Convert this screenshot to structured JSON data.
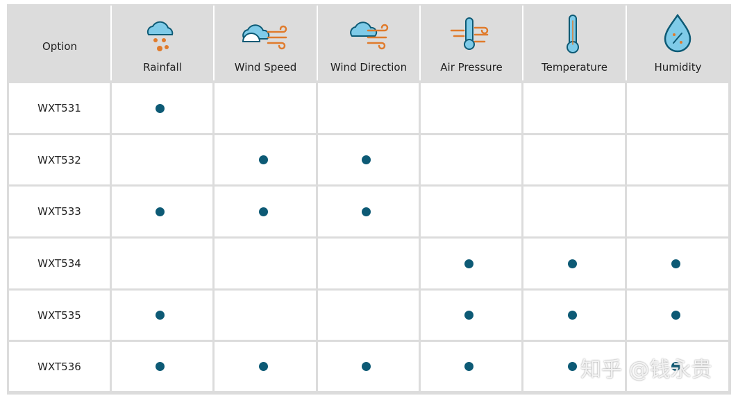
{
  "table": {
    "header": {
      "first": "Option",
      "columns": [
        "Rainfall",
        "Wind Speed",
        "Wind Direction",
        "Air Pressure",
        "Temperature",
        "Humidity"
      ]
    },
    "rows": [
      {
        "name": "WXT531",
        "cells": [
          true,
          false,
          false,
          false,
          false,
          false
        ]
      },
      {
        "name": "WXT532",
        "cells": [
          false,
          true,
          true,
          false,
          false,
          false
        ]
      },
      {
        "name": "WXT533",
        "cells": [
          true,
          true,
          true,
          false,
          false,
          false
        ]
      },
      {
        "name": "WXT534",
        "cells": [
          false,
          false,
          false,
          true,
          true,
          true
        ]
      },
      {
        "name": "WXT535",
        "cells": [
          true,
          false,
          false,
          true,
          true,
          true
        ]
      },
      {
        "name": "WXT536",
        "cells": [
          true,
          true,
          true,
          true,
          true,
          true
        ]
      }
    ]
  },
  "watermark": "知乎 @钱永贵"
}
